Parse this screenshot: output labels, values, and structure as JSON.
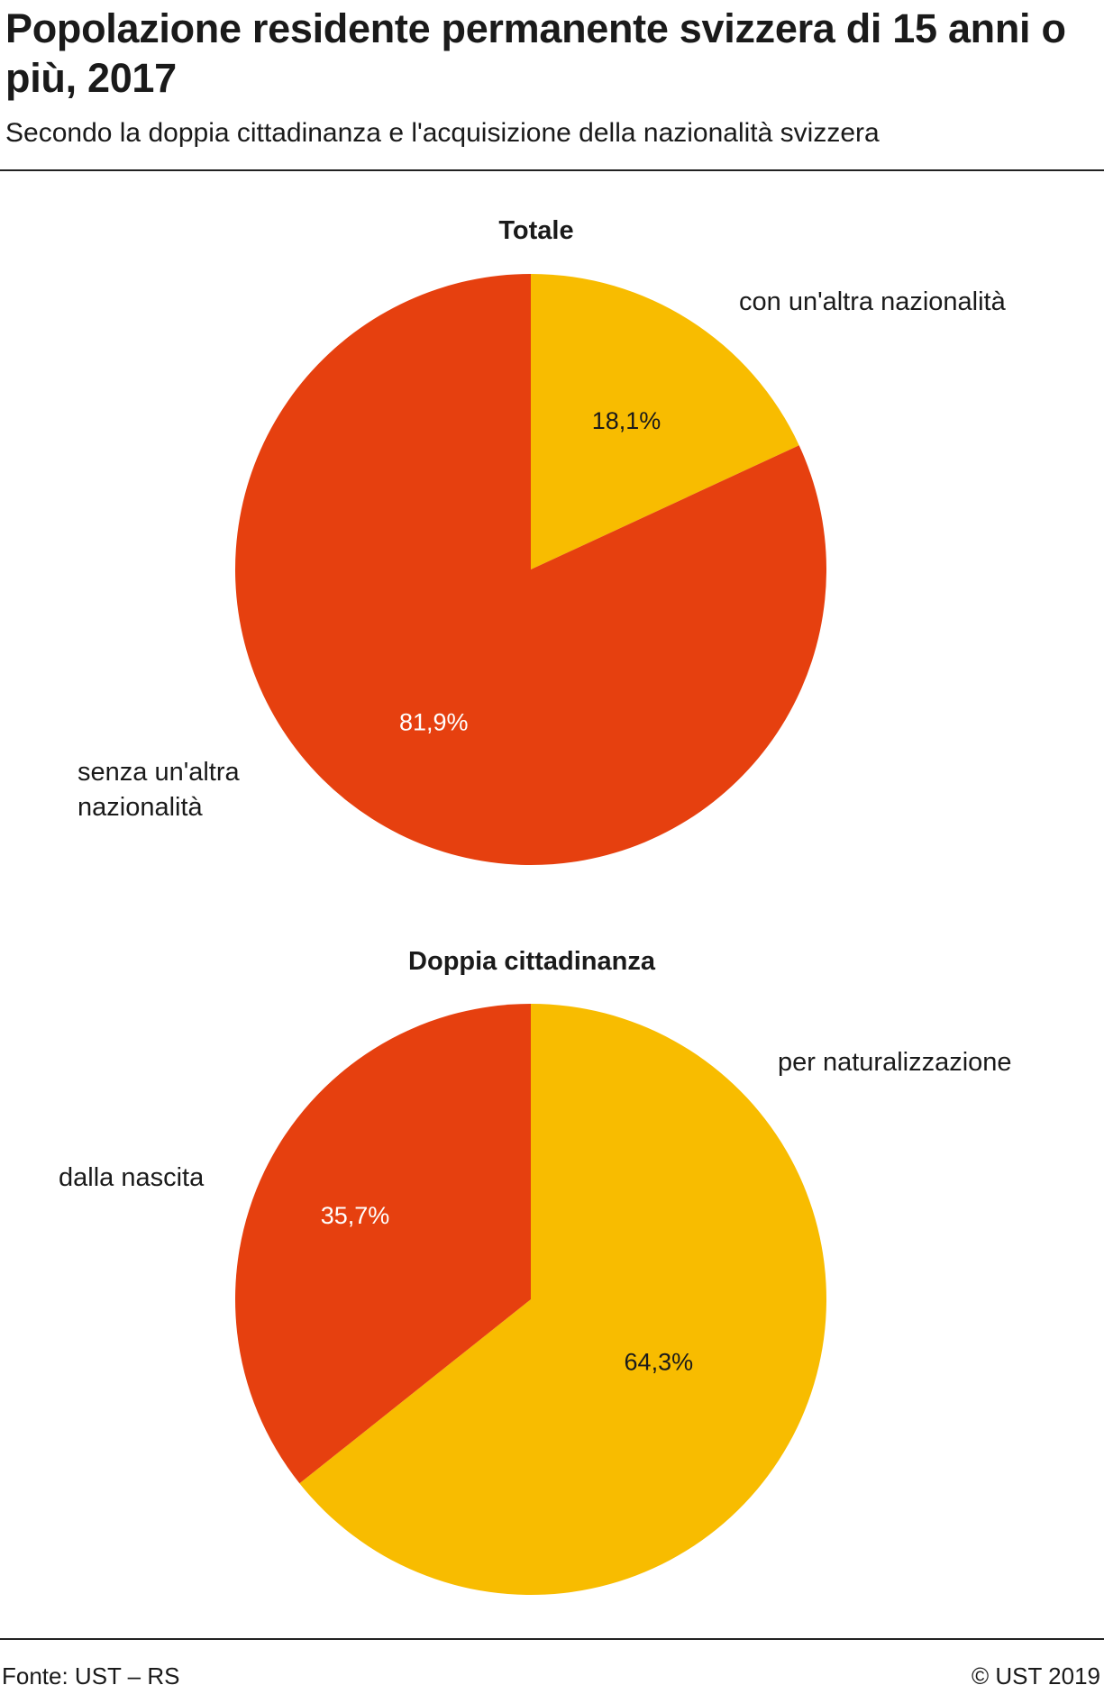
{
  "header": {
    "title": "Popolazione residente permanente svizzera di 15 anni o più, 2017",
    "subtitle": "Secondo la doppia cittadinanza e l'acquisizione della nazionalità svizzera"
  },
  "footer": {
    "source": "Fonte: UST – RS",
    "copyright": "© UST 2019"
  },
  "colors": {
    "red": "#e6400f",
    "yellow": "#f8bc00",
    "pct_on_red": "#ffffff",
    "pct_on_yellow": "#1a1a1a"
  },
  "chart_data": [
    {
      "type": "pie",
      "title": "Totale",
      "slices": [
        {
          "label": "con un'altra nazionalità",
          "value": 18.1,
          "display": "18,1%",
          "color": "#f8bc00"
        },
        {
          "label": "senza un'altra nazionalità",
          "value": 81.9,
          "display": "81,9%",
          "color": "#e6400f"
        }
      ]
    },
    {
      "type": "pie",
      "title": "Doppia cittadinanza",
      "slices": [
        {
          "label": "per naturalizzazione",
          "value": 64.3,
          "display": "64,3%",
          "color": "#f8bc00"
        },
        {
          "label": "dalla nascita",
          "value": 35.7,
          "display": "35,7%",
          "color": "#e6400f"
        }
      ]
    }
  ]
}
